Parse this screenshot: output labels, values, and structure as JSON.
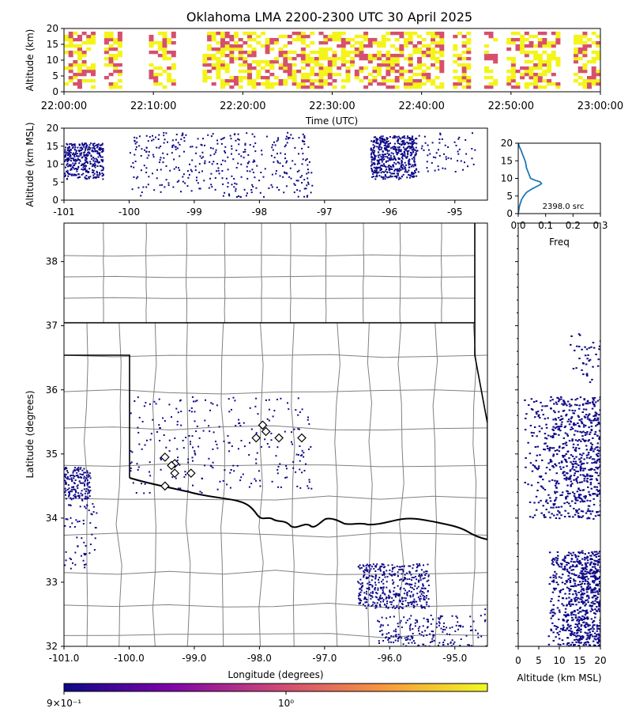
{
  "figure": {
    "title": "Oklahoma LMA 2200-2300 UTC 30 April 2025"
  },
  "chart_data": [
    {
      "type": "heatmap",
      "panel": "time-altitude",
      "xlabel": "Time (UTC)",
      "ylabel": "Altitude (km)",
      "x_ticks": [
        "22:00:00",
        "22:10:00",
        "22:20:00",
        "22:30:00",
        "22:40:00",
        "22:50:00",
        "23:00:00"
      ],
      "y_ticks": [
        "0",
        "5",
        "10",
        "15",
        "20"
      ],
      "xlim_minutes": [
        0,
        60
      ],
      "ylim": [
        0,
        20
      ],
      "colors": {
        "low": "#d6506e",
        "high": "#f4f41a"
      },
      "active_intervals_minutes": [
        [
          0,
          1.5
        ],
        [
          1.5,
          3.5
        ],
        [
          4.5,
          6.5
        ],
        [
          9.5,
          12.5
        ],
        [
          15.5,
          18.5
        ],
        [
          18.5,
          42.5
        ],
        [
          43.5,
          45.5
        ],
        [
          47,
          48.5
        ],
        [
          49.5,
          55.5
        ],
        [
          57,
          60
        ]
      ]
    },
    {
      "type": "scatter",
      "panel": "longitude-altitude",
      "ylabel": "Altitude (km MSL)",
      "x_ticks": [
        "-101",
        "-100",
        "-99",
        "-98",
        "-97",
        "-96",
        "-95"
      ],
      "y_ticks": [
        "0",
        "5",
        "10",
        "15",
        "20"
      ],
      "xlim": [
        -101.0,
        -94.5
      ],
      "ylim": [
        0,
        20
      ],
      "color": "#0d0887",
      "clusters": [
        {
          "lon": [
            -101.0,
            -100.4
          ],
          "alt": [
            6,
            16
          ],
          "count": 350
        },
        {
          "lon": [
            -100.0,
            -97.2
          ],
          "alt": [
            1,
            19
          ],
          "count": 380
        },
        {
          "lon": [
            -96.3,
            -95.6
          ],
          "alt": [
            6,
            18
          ],
          "count": 520
        },
        {
          "lon": [
            -95.6,
            -94.7
          ],
          "alt": [
            8,
            19
          ],
          "count": 60
        }
      ]
    },
    {
      "type": "line",
      "panel": "altitude-histogram",
      "xlabel": "Freq",
      "x_ticks": [
        "0.0",
        "0.1",
        "0.2",
        "0.3"
      ],
      "y_ticks": [
        "0",
        "5",
        "10",
        "15",
        "20"
      ],
      "xlim": [
        0,
        0.3
      ],
      "ylim": [
        0,
        20
      ],
      "annotation": "2398.0 src",
      "color": "#1f77b4",
      "altitude": [
        0,
        1,
        2,
        3,
        4,
        5,
        6,
        7,
        8,
        8.5,
        9,
        9.5,
        10,
        11,
        12,
        13,
        14,
        15,
        16,
        17,
        18,
        19,
        20
      ],
      "freq": [
        0.0,
        0.002,
        0.004,
        0.008,
        0.012,
        0.02,
        0.03,
        0.05,
        0.075,
        0.085,
        0.08,
        0.06,
        0.045,
        0.04,
        0.035,
        0.03,
        0.028,
        0.025,
        0.02,
        0.015,
        0.01,
        0.004,
        0.0
      ]
    },
    {
      "type": "scatter",
      "panel": "plan-view-map",
      "xlabel": "Longitude (degrees)",
      "ylabel": "Latitude (degrees)",
      "x_ticks": [
        "-101.0",
        "-100.0",
        "-99.0",
        "-98.0",
        "-97.0",
        "-96.0",
        "-95.0"
      ],
      "y_ticks": [
        "32",
        "33",
        "34",
        "35",
        "36",
        "37",
        "38"
      ],
      "xlim": [
        -101.0,
        -94.5
      ],
      "ylim": [
        32.0,
        38.6
      ],
      "color": "#0d0887",
      "stations": [
        {
          "lon": -97.95,
          "lat": 35.45
        },
        {
          "lon": -97.9,
          "lat": 35.35
        },
        {
          "lon": -98.05,
          "lat": 35.25
        },
        {
          "lon": -97.7,
          "lat": 35.25
        },
        {
          "lon": -97.35,
          "lat": 35.25
        },
        {
          "lon": -99.45,
          "lat": 34.95
        },
        {
          "lon": -99.3,
          "lat": 34.85
        },
        {
          "lon": -99.35,
          "lat": 34.82
        },
        {
          "lon": -99.3,
          "lat": 34.7
        },
        {
          "lon": -99.05,
          "lat": 34.7
        },
        {
          "lon": -99.45,
          "lat": 34.5
        }
      ],
      "clusters": [
        {
          "lon": [
            -101.0,
            -100.6
          ],
          "lat": [
            34.3,
            34.8
          ],
          "count": 160
        },
        {
          "lon": [
            -101.0,
            -100.5
          ],
          "lat": [
            33.2,
            34.3
          ],
          "count": 60
        },
        {
          "lon": [
            -100.0,
            -97.2
          ],
          "lat": [
            34.4,
            35.9
          ],
          "count": 260
        },
        {
          "lon": [
            -96.5,
            -95.4
          ],
          "lat": [
            32.6,
            33.3
          ],
          "count": 420
        },
        {
          "lon": [
            -96.2,
            -95.0
          ],
          "lat": [
            32.0,
            32.5
          ],
          "count": 160
        },
        {
          "lon": [
            -95.0,
            -94.5
          ],
          "lat": [
            32.0,
            32.6
          ],
          "count": 30
        }
      ]
    },
    {
      "type": "scatter",
      "panel": "altitude-latitude",
      "xlabel": "Altitude (km MSL)",
      "x_ticks": [
        "0",
        "5",
        "10",
        "15",
        "20"
      ],
      "xlim": [
        0,
        20
      ],
      "ylim": [
        32.0,
        38.6
      ],
      "color": "#0d0887",
      "clusters": [
        {
          "alt": [
            1,
            20
          ],
          "lat": [
            34.0,
            35.9
          ],
          "count": 700
        },
        {
          "alt": [
            7,
            20
          ],
          "lat": [
            32.0,
            33.5
          ],
          "count": 700
        },
        {
          "alt": [
            12,
            20
          ],
          "lat": [
            36.1,
            36.9
          ],
          "count": 40
        }
      ]
    },
    {
      "type": "heatmap",
      "panel": "colorbar",
      "scale": "log",
      "tick_labels": [
        "9×10⁻¹",
        "10⁰"
      ],
      "colors": [
        "#0d0887",
        "#7e03a8",
        "#cc4778",
        "#f89540",
        "#f0f921"
      ]
    }
  ]
}
